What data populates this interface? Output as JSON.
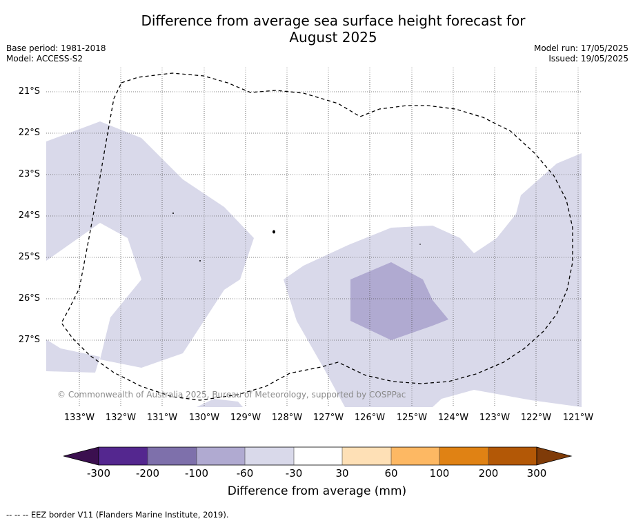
{
  "title_line1": "Difference from average sea surface height forecast for",
  "title_line2": "August 2025",
  "base_period": "Base period: 1981-2018",
  "model": "Model: ACCESS-S2",
  "model_run": "Model run: 17/05/2025",
  "issued": "Issued: 19/05/2025",
  "copyright": "© Commonwealth of Australia 2025, Bureau of Meteorology, supported by COSPPac",
  "footnote": "-- -- -- EEZ border V11 (Flanders Marine Institute, 2019).",
  "map": {
    "lat_labels": [
      "21°S",
      "22°S",
      "23°S",
      "24°S",
      "25°S",
      "26°S",
      "27°S"
    ],
    "lon_labels": [
      "133°W",
      "132°W",
      "131°W",
      "130°W",
      "129°W",
      "128°W",
      "127°W",
      "126°W",
      "125°W",
      "124°W",
      "123°W",
      "122°W",
      "121°W"
    ]
  },
  "colorbar": {
    "label": "Difference from average (mm)",
    "ticks": [
      "-300",
      "-200",
      "-100",
      "-60",
      "-30",
      "30",
      "60",
      "100",
      "200",
      "300"
    ],
    "colors": [
      "#3b0f4f",
      "#54278f",
      "#7e70ab",
      "#b0aad1",
      "#d9d9ea",
      "#ffffff",
      "#fee0b6",
      "#fdb863",
      "#e08214",
      "#b35806",
      "#7f3b08"
    ]
  }
}
